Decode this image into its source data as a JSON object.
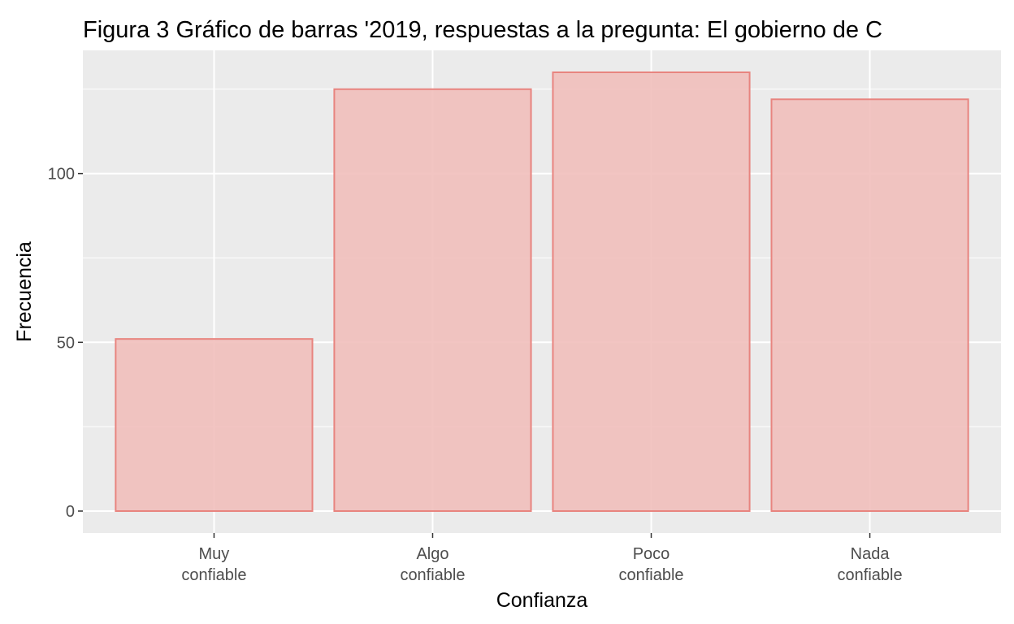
{
  "chart_data": {
    "type": "bar",
    "title": "Figura 3 Gráfico de barras '2019, respuestas a la pregunta: El gobierno de C",
    "xlabel": "Confianza",
    "ylabel": "Frecuencia",
    "categories": [
      [
        "Muy",
        "confiable"
      ],
      [
        "Algo",
        "confiable"
      ],
      [
        "Poco",
        "confiable"
      ],
      [
        "Nada",
        "confiable"
      ]
    ],
    "values": [
      51,
      125,
      130,
      122
    ],
    "ylim": [
      -6.5,
      136.5
    ],
    "yticks": [
      0,
      50,
      100
    ],
    "yticks_labels": [
      "0",
      "50",
      "100"
    ],
    "grid": true,
    "legend": "none",
    "colors": {
      "bar_fill": "#f1bfbb",
      "bar_stroke": "#e8847f",
      "panel_bg": "#ebebeb",
      "grid": "#ffffff",
      "tick_text": "#4d4d4d",
      "tick_mark": "#333333"
    }
  }
}
